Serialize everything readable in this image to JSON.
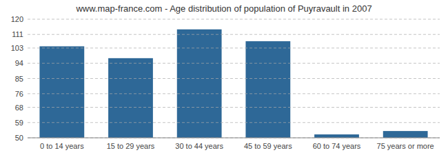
{
  "chart_data": {
    "type": "bar",
    "title": "www.map-france.com - Age distribution of population of Puyravault in 2007",
    "categories": [
      "0 to 14 years",
      "15 to 29 years",
      "30 to 44 years",
      "45 to 59 years",
      "60 to 74 years",
      "75 years or more"
    ],
    "values": [
      104,
      97,
      114,
      107,
      52,
      54
    ],
    "color": "#2e6897",
    "ylim": [
      50,
      120
    ],
    "yticks": [
      50,
      59,
      68,
      76,
      85,
      94,
      103,
      111,
      120
    ],
    "grid": true
  }
}
